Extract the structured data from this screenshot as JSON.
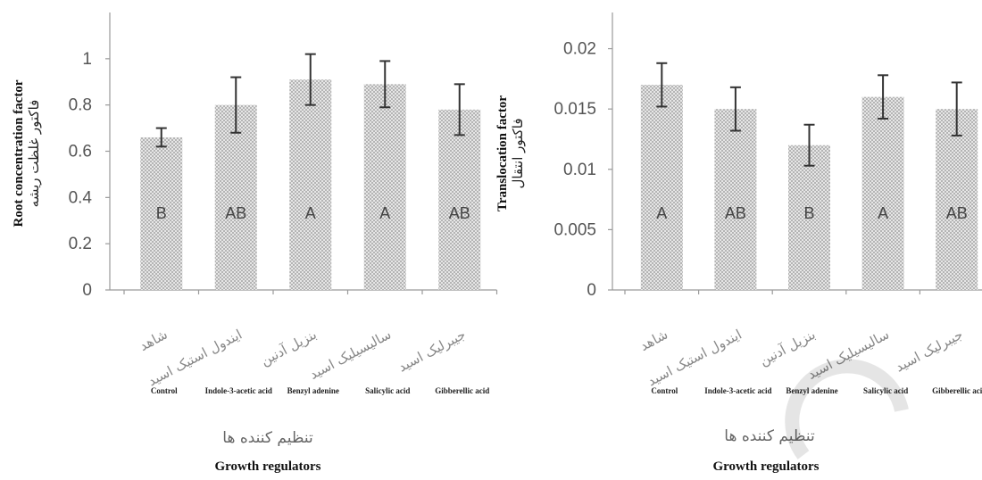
{
  "chart_data": [
    {
      "type": "bar",
      "categories_fa": [
        "شاهد",
        "ایندول استیک اسید",
        "بنزیل آدنین",
        "سالیسیلیک اسید",
        "جیبرلیک اسید"
      ],
      "categories": [
        "Control",
        "Indole-3-acetic acid",
        "Benzyl adenine",
        "Salicylic acid",
        "Gibberellic acid"
      ],
      "values": [
        0.66,
        0.8,
        0.91,
        0.89,
        0.78
      ],
      "error": [
        0.04,
        0.12,
        0.11,
        0.1,
        0.11
      ],
      "letters": [
        "B",
        "AB",
        "A",
        "A",
        "AB"
      ],
      "ylabel": "Root concentration factor",
      "ylabel_fa": "فاکتور غلظت ریشه",
      "xlabel": "Growth regulators",
      "xlabel_fa": "تنظیم کننده ها",
      "ylim": [
        0,
        1.2
      ],
      "yticks": [
        "0",
        "0.2",
        "0.4",
        "0.6",
        "0.8",
        "1"
      ],
      "bar_color": "#c8c8c8",
      "grid": false
    },
    {
      "type": "bar",
      "categories_fa": [
        "شاهد",
        "ایندول استیک اسید",
        "بنزیل آدنین",
        "سالیسیلیک اسید",
        "جیبرلیک اسید"
      ],
      "categories": [
        "Control",
        "Indole-3-acetic acid",
        "Benzyl adenine",
        "Salicylic acid",
        "Gibberellic acid"
      ],
      "values": [
        0.017,
        0.015,
        0.012,
        0.016,
        0.015
      ],
      "error": [
        0.0018,
        0.0018,
        0.0017,
        0.0018,
        0.0022
      ],
      "letters": [
        "A",
        "AB",
        "B",
        "A",
        "AB"
      ],
      "ylabel": "Translocation factor",
      "ylabel_fa": "فاکتور انتقال",
      "xlabel": "Growth regulators",
      "xlabel_fa": "تنظیم کننده ها",
      "ylim": [
        0,
        0.023
      ],
      "yticks": [
        "0",
        "0.005",
        "0.01",
        "0.015",
        "0.02"
      ],
      "bar_color": "#c8c8c8",
      "grid": false
    }
  ]
}
